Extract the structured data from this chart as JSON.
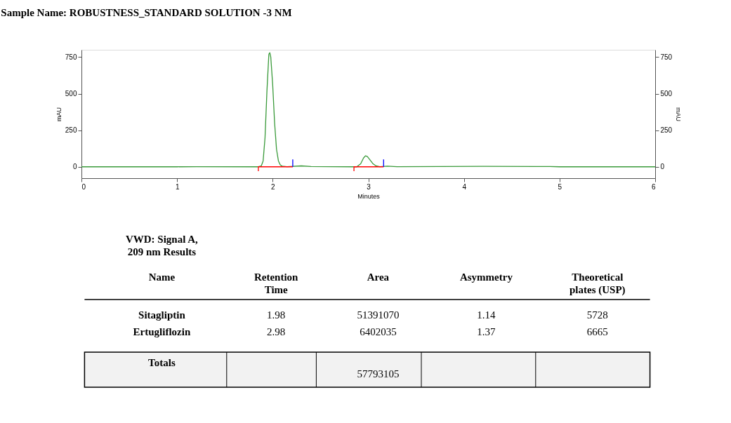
{
  "chart_data": {
    "type": "line",
    "title": "Sample Name: ROBUSTNESS_STANDARD SOLUTION -3 NM",
    "xlabel": "Minutes",
    "ylabel": "mAU",
    "y2label": "mAU",
    "xlim": [
      0,
      6
    ],
    "xticks": [
      0,
      1,
      2,
      3,
      4,
      5,
      6
    ],
    "ylim": [
      -78,
      800
    ],
    "yticks": [
      0,
      250,
      500,
      750
    ],
    "y2lim": [
      -78,
      800
    ],
    "y2ticks": [
      0,
      250,
      500,
      750
    ],
    "grid": false,
    "marker": "none",
    "line_style": "solid",
    "series": [
      {
        "color": "#3a9a3a",
        "x": [
          0,
          1.0,
          1.2,
          1.85,
          1.88,
          1.9,
          1.92,
          1.94,
          1.96,
          1.97,
          1.98,
          2.0,
          2.02,
          2.04,
          2.06,
          2.08,
          2.1,
          2.15,
          2.3,
          2.4,
          2.85,
          2.88,
          2.92,
          2.95,
          2.97,
          2.99,
          3.02,
          3.05,
          3.08,
          3.12,
          3.2,
          3.3,
          4.2,
          4.9,
          5.0,
          6.0
        ],
        "values": [
          0,
          0,
          1,
          0,
          5,
          40,
          200,
          520,
          770,
          780,
          750,
          560,
          300,
          120,
          40,
          12,
          4,
          1,
          6,
          2,
          0,
          0,
          20,
          60,
          75,
          70,
          45,
          20,
          6,
          1,
          4,
          1,
          3,
          2,
          0,
          0
        ]
      },
      {
        "color": "#ff0000",
        "x": [
          1.85,
          1.85,
          2.21
        ],
        "values": [
          -30,
          0,
          0
        ]
      },
      {
        "color": "#ff0000",
        "x": [
          2.85,
          2.85,
          3.16
        ],
        "values": [
          -30,
          0,
          0
        ]
      },
      {
        "color": "#0000ff",
        "x": [
          2.21,
          2.21
        ],
        "values": [
          0,
          50
        ]
      },
      {
        "color": "#0000ff",
        "x": [
          3.16,
          3.16
        ],
        "values": [
          0,
          50
        ]
      }
    ],
    "annotations": [
      "VWD: Signal A,\n209 nm Results",
      "Name",
      "Retention\nTime",
      "Area",
      "Asymmetry",
      "Theoretical\nplates (USP)",
      "Sitagliptin",
      "1.98",
      "51391070",
      "1.14",
      "5728",
      "Ertugliflozin",
      "2.98",
      "6402035",
      "1.37",
      "6665",
      "Totals",
      "57793105"
    ]
  }
}
